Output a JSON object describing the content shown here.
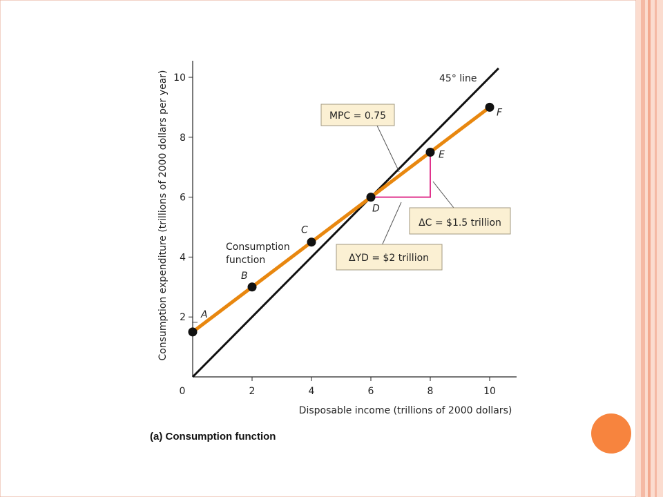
{
  "slide": {
    "accent_colors": {
      "right_band": "#f5b9a4",
      "right_band_light": "#fbd9cc",
      "bullet_circle": "#f7843e"
    }
  },
  "chart_data": {
    "type": "line",
    "title": "",
    "caption": "(a) Consumption function",
    "xlabel": "Disposable income (trillions of 2000 dollars)",
    "ylabel": "Consumption expenditure (trillions of 2000 dollars per year)",
    "xlim": [
      0,
      11
    ],
    "ylim": [
      0,
      10.5
    ],
    "x_ticks": [
      0,
      2,
      4,
      6,
      8,
      10
    ],
    "y_ticks": [
      2,
      4,
      6,
      8,
      10
    ],
    "grid": false,
    "colors": {
      "consumption": "#e8870f",
      "line45": "#111111",
      "delta": "#e0338c",
      "points": "#111111"
    },
    "series": [
      {
        "name": "45° line",
        "x": [
          0,
          10.3
        ],
        "y": [
          0,
          10.3
        ]
      },
      {
        "name": "Consumption function",
        "x": [
          0,
          10
        ],
        "y": [
          1.5,
          9
        ]
      }
    ],
    "points": [
      {
        "label": "A",
        "x": 0,
        "y": 1.5
      },
      {
        "label": "B",
        "x": 2,
        "y": 3
      },
      {
        "label": "C",
        "x": 4,
        "y": 4.5
      },
      {
        "label": "D",
        "x": 6,
        "y": 6
      },
      {
        "label": "E",
        "x": 8,
        "y": 7.5
      },
      {
        "label": "F",
        "x": 10,
        "y": 9
      }
    ],
    "annotations": {
      "line45": "45° line",
      "consumption": "Consumption function",
      "mpc": "MPC = 0.75",
      "delta_c": "ΔC = $1.5 trillion",
      "delta_yd": "ΔYD = $2 trillion"
    },
    "delta_triangle": {
      "from": [
        6,
        6
      ],
      "corner": [
        8,
        6
      ],
      "to": [
        8,
        7.5
      ]
    }
  }
}
